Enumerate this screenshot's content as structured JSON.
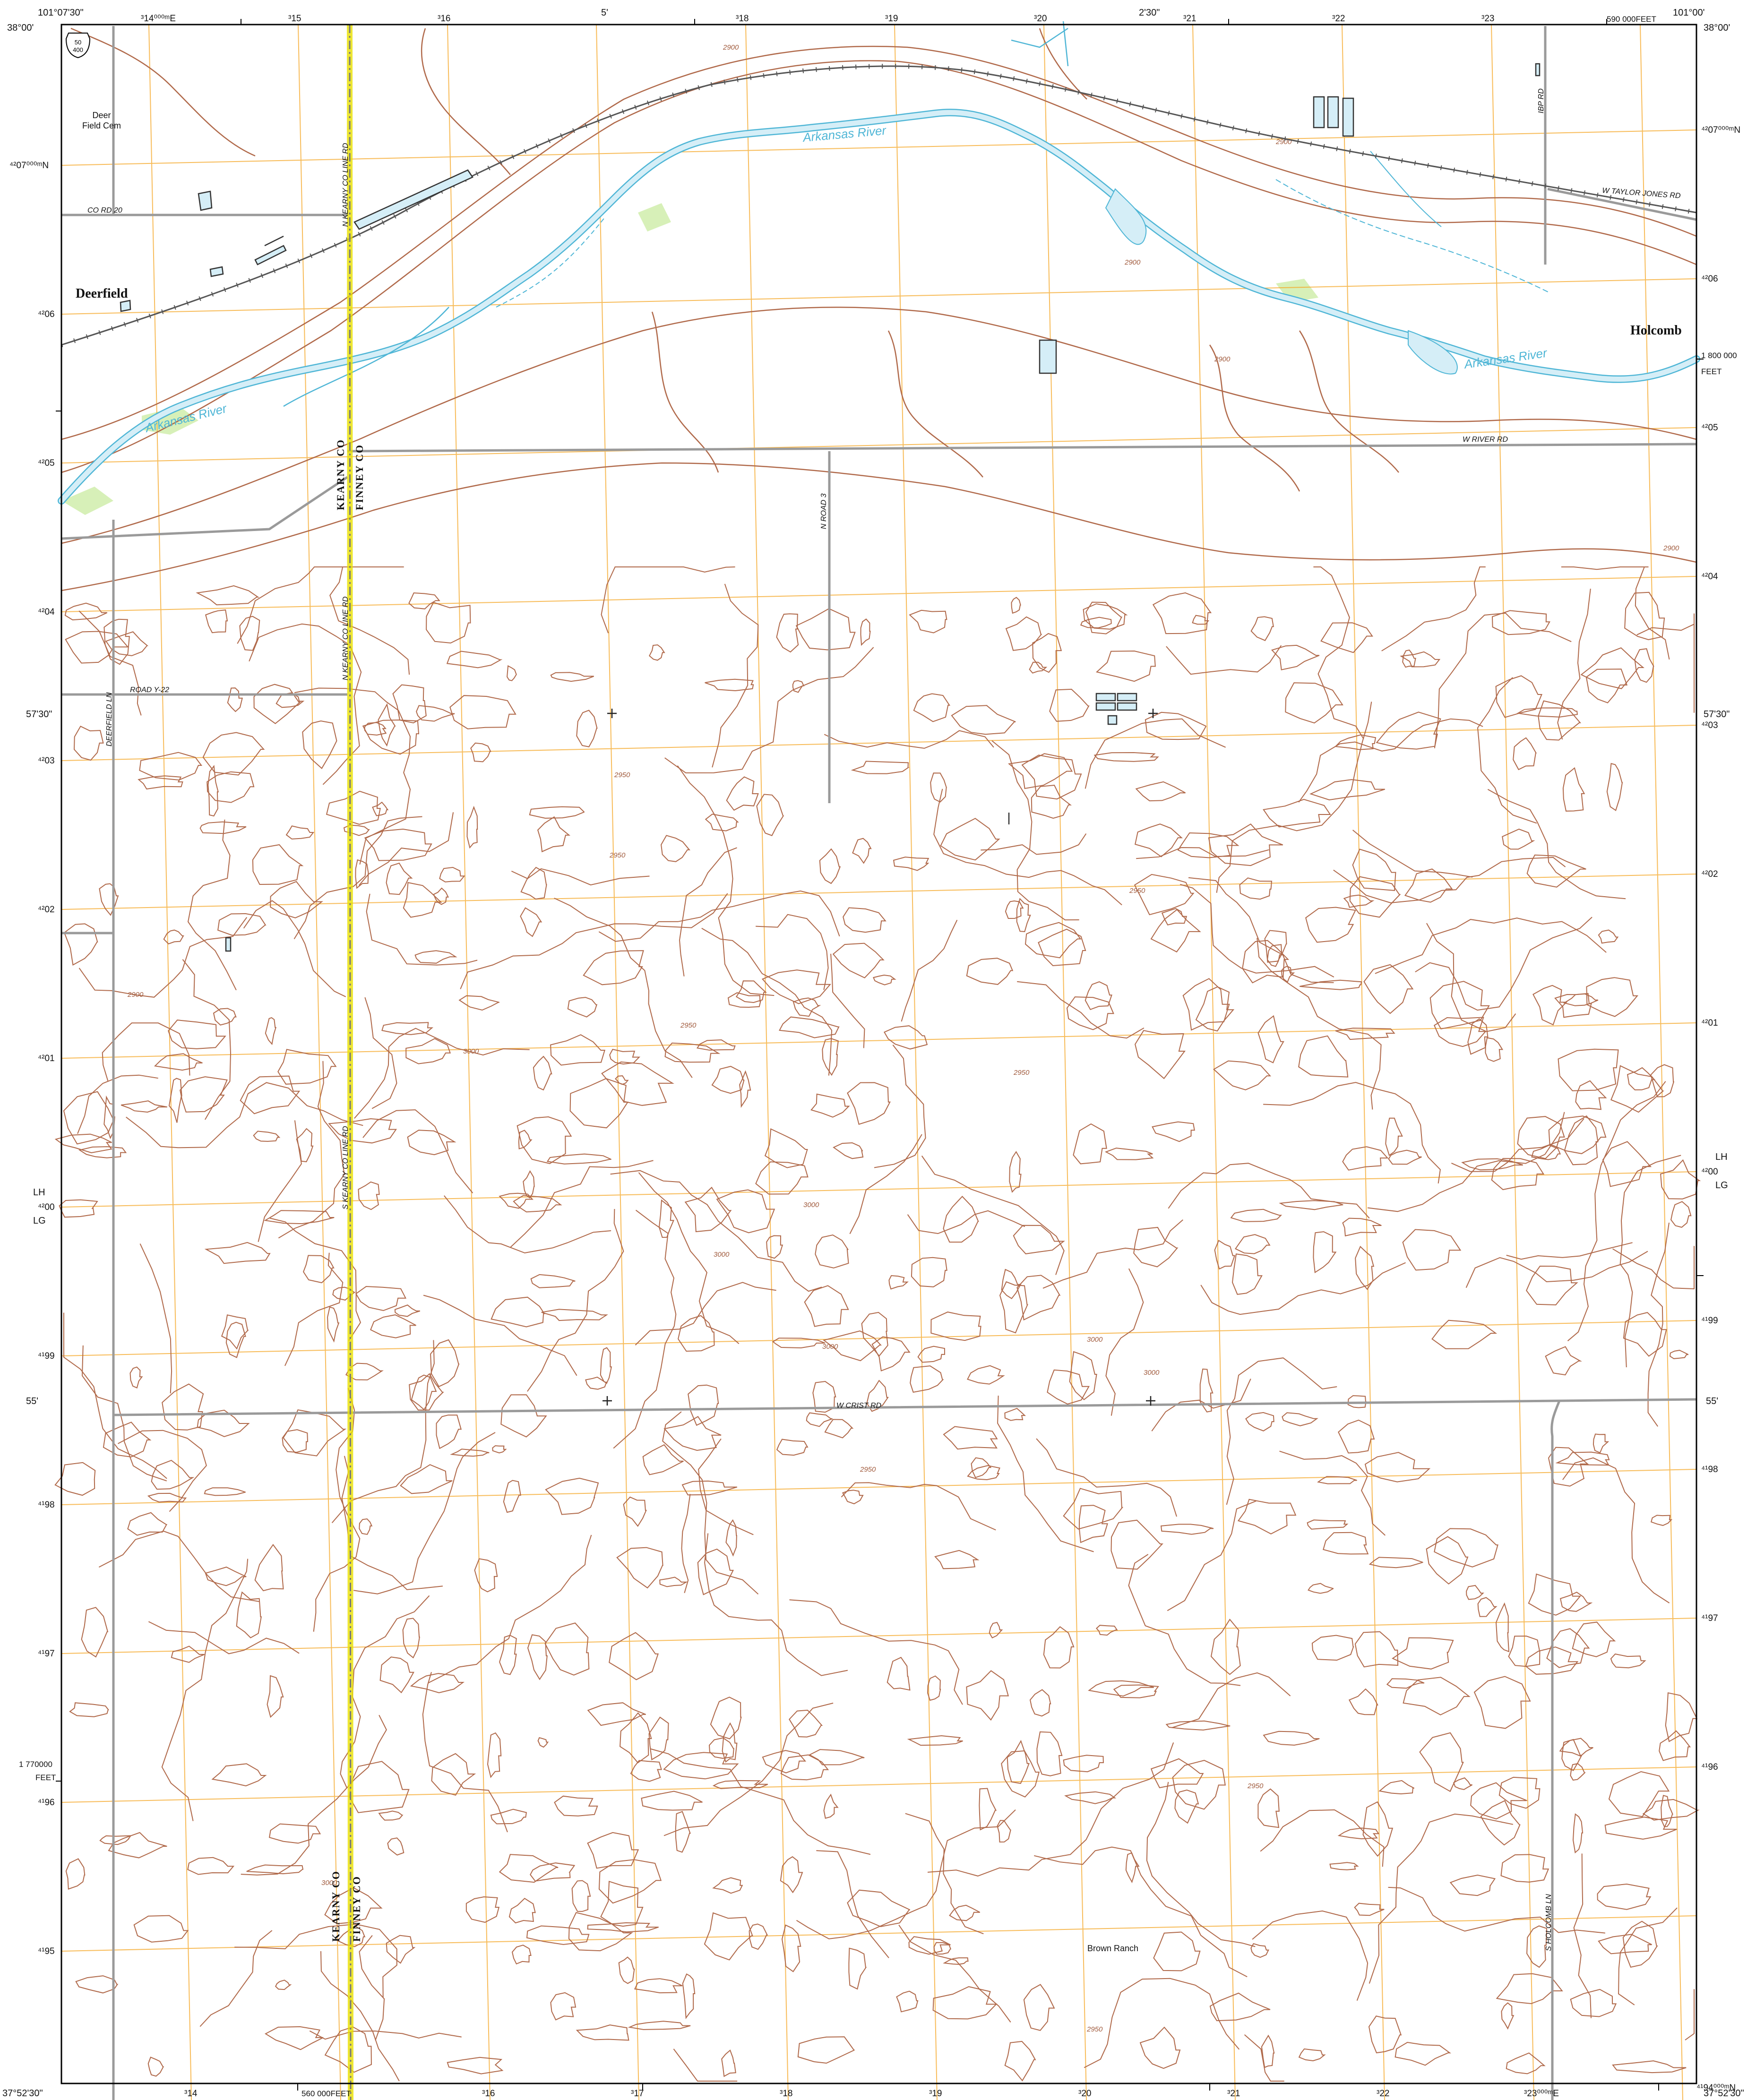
{
  "colors": {
    "background": "#ffffff",
    "neatline": "#000000",
    "contour": "#b0694a",
    "contour_label": "#a05a3c",
    "utm_grid": "#f5a623",
    "water": "#4fb6d6",
    "water_fill": "#d5eef7",
    "vegetation": "#d7f0b8",
    "road": "#9a9a9a",
    "county_line": "#e8e000",
    "railroad": "#555555",
    "text": "#111111"
  },
  "corners": {
    "nw_lon": "101°07'30\"",
    "nw_lat": "38°00'",
    "ne_lon": "101°00'",
    "ne_lat": "38°00'",
    "sw_lat": "37°52'30\"",
    "se_lat": "37°52'30\""
  },
  "marginal": {
    "top_minutes_1": "5'",
    "top_minutes_2": "2'30\"",
    "left_minutes_1": "57'30\"",
    "left_minutes_2": "55'",
    "right_minutes_1": "57'30\"",
    "right_minutes_2": "55'",
    "feet_top": "590 000FEET",
    "feet_bottom": "560 000FEET",
    "feet_right_1": "1 800 000",
    "feet_right_2": "FEET",
    "feet_left_1": "1 770000",
    "feet_left_2": "FEET",
    "lh_lg_left_1": "LH",
    "lh_lg_left_2": "LG",
    "lh_lg_right_1": "LH",
    "lh_lg_right_2": "LG"
  },
  "grid": {
    "top_first": "³14⁰⁰⁰ᵐE",
    "bottom_first": "³14",
    "bottom_last": "³23⁰⁰⁰ᵐE",
    "easting_labels": [
      "³15",
      "³16",
      "³17",
      "³18",
      "³19",
      "³20",
      "³21",
      "³22",
      "³23"
    ],
    "northing_first": "⁴²07⁰⁰⁰ᵐN",
    "northing_last": "⁴¹94⁰⁰⁰ᵐN",
    "northing_labels": [
      "⁴²06",
      "⁴²05",
      "⁴²04",
      "⁴²03",
      "⁴²02",
      "⁴²01",
      "⁴²00",
      "⁴¹99",
      "⁴¹98",
      "⁴¹97",
      "⁴¹96",
      "⁴¹95"
    ]
  },
  "shield": {
    "top": "50",
    "bottom": "400"
  },
  "places": {
    "deerfield": "Deerfield",
    "holcomb": "Holcomb",
    "deerfield_cem_1": "Deer",
    "deerfield_cem_2": "Field Cem",
    "brown_ranch": "Brown Ranch"
  },
  "counties": {
    "kearny": "KEARNY CO",
    "finney": "FINNEY CO"
  },
  "water": {
    "arkansas_river": "Arkansas River"
  },
  "roads": {
    "co_rd_20": "CO RD 20",
    "w_taylor_jones": "W TAYLOR JONES RD",
    "ibp_rd": "IBP RD",
    "w_river_rd": "W RIVER RD",
    "n_road_3": "N ROAD 3",
    "road_y22": "ROAD Y-22",
    "deerfield_ln": "DEERFIELD LN",
    "w_crist_rd": "W CRIST RD",
    "s_holcomb_ln": "S HOLCOMB LN",
    "n_kearny_coline": "N KEARNY CO LINE RD",
    "s_kearny_coline": "S KEARNY CO LINE RD"
  },
  "contour_labels": {
    "c2900": "2900",
    "c2950": "2950",
    "c3000": "3000"
  }
}
